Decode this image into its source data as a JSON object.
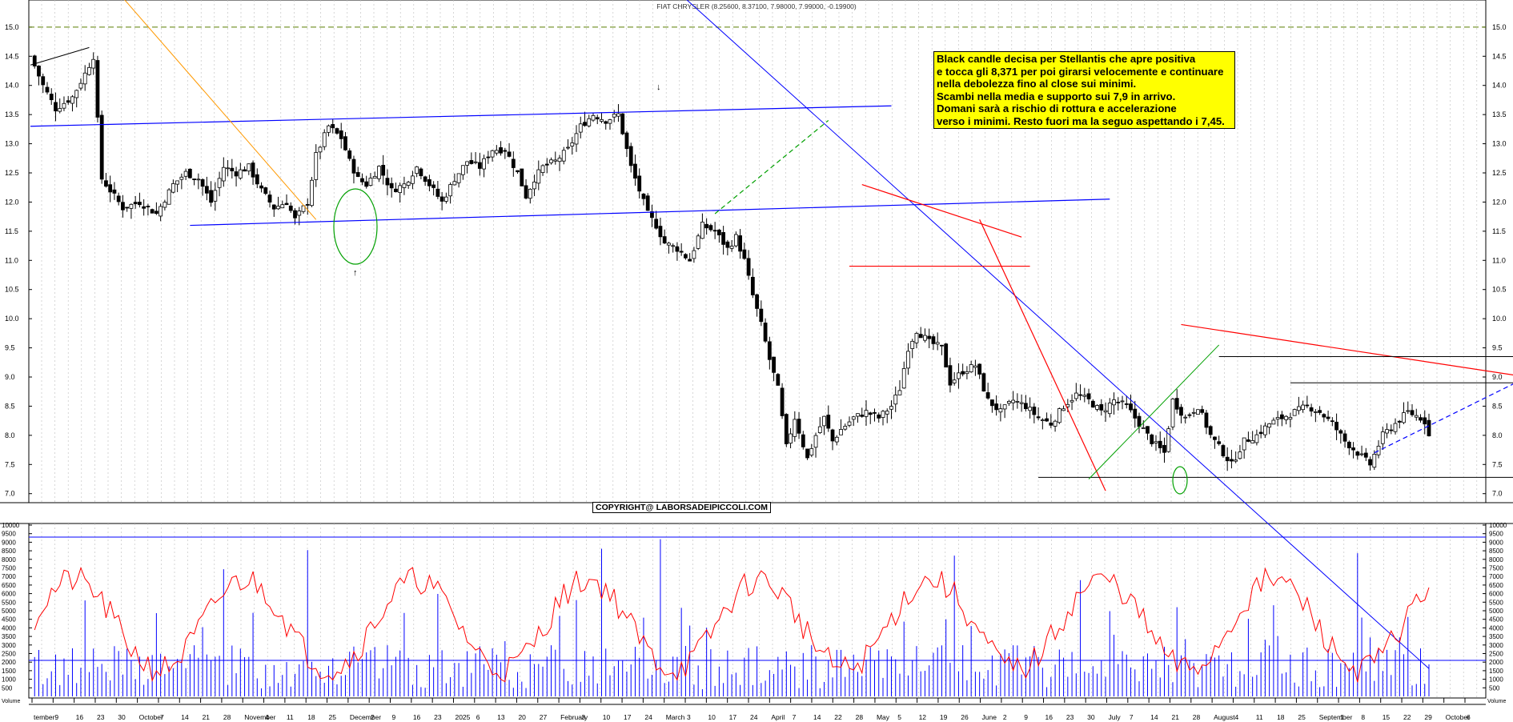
{
  "title": "FIAT CHRYSLER (8.25600, 8.37100, 7.98000, 7.99000, -0.19900)",
  "annotation": "Black candle decisa per Stellantis  che apre positiva\ne tocca gli 8,371 per poi girarsi velocemente e continuare\nnella debolezza fino al close sui minimi.\nScambi nella media e supporto sui 7,9 in arrivo.\nDomani sarà a rischio di rottura e accelerazione\nverso i minimi. Resto fuori ma la seguo aspettando i 7,45.",
  "copyright": "COPYRIGHT@ LABORSADEIPICCOLI.COM",
  "volume_axis_label": "Volume",
  "colors": {
    "price_line": "#000000",
    "trend_blue": "#0000ff",
    "trend_red": "#ff0000",
    "trend_green": "#00a000",
    "ma_orange": "#ff9900",
    "volume_bar": "#0000ff",
    "volume_ma": "#ff0000",
    "ref_dash": "#5a7d00"
  },
  "chart_data": [
    {
      "type": "candlestick",
      "title": "FIAT CHRYSLER (8.25600, 8.37100, 7.98000, 7.99000, -0.19900)",
      "ylim": [
        6.9,
        15.3
      ],
      "yticks": [
        "7.0",
        "7.5",
        "8.0",
        "8.5",
        "9.0",
        "9.5",
        "10.0",
        "10.5",
        "11.0",
        "11.5",
        "12.0",
        "12.5",
        "13.0",
        "13.5",
        "14.0",
        "14.5",
        "15.0"
      ],
      "reference_line": 15.0,
      "last_candle": {
        "open": 8.256,
        "high": 8.371,
        "low": 7.98,
        "close": 7.99,
        "change": -0.199
      },
      "path_points": [
        [
          0,
          14.5
        ],
        [
          3,
          14.0
        ],
        [
          6,
          13.6
        ],
        [
          10,
          13.8
        ],
        [
          13,
          14.2
        ],
        [
          15,
          14.5
        ],
        [
          16,
          13.4
        ],
        [
          17,
          12.4
        ],
        [
          20,
          12.1
        ],
        [
          22,
          11.9
        ],
        [
          26,
          12.0
        ],
        [
          30,
          11.8
        ],
        [
          34,
          12.3
        ],
        [
          37,
          12.5
        ],
        [
          40,
          12.4
        ],
        [
          43,
          12.0
        ],
        [
          46,
          12.6
        ],
        [
          49,
          12.5
        ],
        [
          52,
          12.6
        ],
        [
          55,
          12.2
        ],
        [
          58,
          11.9
        ],
        [
          61,
          12.0
        ],
        [
          63,
          11.7
        ],
        [
          66,
          12.0
        ],
        [
          68,
          12.8
        ],
        [
          71,
          13.3
        ],
        [
          74,
          13.1
        ],
        [
          76,
          12.7
        ],
        [
          78,
          12.4
        ],
        [
          80,
          12.3
        ],
        [
          83,
          12.6
        ],
        [
          86,
          12.2
        ],
        [
          89,
          12.3
        ],
        [
          92,
          12.6
        ],
        [
          95,
          12.3
        ],
        [
          98,
          12.0
        ],
        [
          101,
          12.4
        ],
        [
          104,
          12.7
        ],
        [
          107,
          12.6
        ],
        [
          110,
          12.9
        ],
        [
          113,
          12.9
        ],
        [
          116,
          12.5
        ],
        [
          118,
          12.1
        ],
        [
          120,
          12.4
        ],
        [
          122,
          12.6
        ],
        [
          125,
          12.7
        ],
        [
          128,
          12.9
        ],
        [
          131,
          13.3
        ],
        [
          134,
          13.5
        ],
        [
          137,
          13.4
        ],
        [
          140,
          13.5
        ],
        [
          143,
          12.6
        ],
        [
          145,
          12.2
        ],
        [
          147,
          11.8
        ],
        [
          149,
          11.6
        ],
        [
          151,
          11.3
        ],
        [
          154,
          11.2
        ],
        [
          157,
          11.0
        ],
        [
          160,
          11.6
        ],
        [
          163,
          11.5
        ],
        [
          166,
          11.2
        ],
        [
          168,
          11.4
        ],
        [
          170,
          11.0
        ],
        [
          172,
          10.4
        ],
        [
          174,
          9.9
        ],
        [
          176,
          9.3
        ],
        [
          178,
          8.8
        ],
        [
          180,
          7.8
        ],
        [
          182,
          8.3
        ],
        [
          185,
          7.6
        ],
        [
          187,
          8.0
        ],
        [
          189,
          8.3
        ],
        [
          191,
          7.9
        ],
        [
          193,
          8.1
        ],
        [
          196,
          8.3
        ],
        [
          199,
          8.4
        ],
        [
          202,
          8.3
        ],
        [
          205,
          8.5
        ],
        [
          207,
          8.8
        ],
        [
          209,
          9.5
        ],
        [
          211,
          9.8
        ],
        [
          214,
          9.6
        ],
        [
          217,
          9.5
        ],
        [
          219,
          8.9
        ],
        [
          222,
          9.1
        ],
        [
          225,
          9.2
        ],
        [
          228,
          8.6
        ],
        [
          231,
          8.4
        ],
        [
          234,
          8.6
        ],
        [
          237,
          8.5
        ],
        [
          240,
          8.3
        ],
        [
          243,
          8.2
        ],
        [
          246,
          8.5
        ],
        [
          249,
          8.7
        ],
        [
          252,
          8.6
        ],
        [
          255,
          8.4
        ],
        [
          258,
          8.6
        ],
        [
          261,
          8.5
        ],
        [
          264,
          8.2
        ],
        [
          267,
          7.9
        ],
        [
          270,
          7.7
        ],
        [
          272,
          8.6
        ],
        [
          275,
          8.3
        ],
        [
          278,
          8.5
        ],
        [
          281,
          8.0
        ],
        [
          284,
          7.7
        ],
        [
          286,
          7.5
        ],
        [
          289,
          7.9
        ],
        [
          292,
          8.0
        ],
        [
          295,
          8.2
        ],
        [
          298,
          8.3
        ],
        [
          301,
          8.4
        ],
        [
          304,
          8.5
        ],
        [
          307,
          8.4
        ],
        [
          310,
          8.2
        ],
        [
          313,
          7.9
        ],
        [
          316,
          7.7
        ],
        [
          319,
          7.5
        ],
        [
          322,
          8.0
        ],
        [
          325,
          8.2
        ],
        [
          328,
          8.4
        ],
        [
          331,
          8.3
        ],
        [
          333,
          8.18
        ]
      ]
    },
    {
      "type": "bar",
      "title": "Volume",
      "ylim": [
        0,
        10000
      ],
      "yticks": [
        "500",
        "1000",
        "1500",
        "2000",
        "2500",
        "3000",
        "3500",
        "4000",
        "4500",
        "5000",
        "5500",
        "6000",
        "6500",
        "7000",
        "7500",
        "8000",
        "8500",
        "9000",
        "9500",
        "10000"
      ],
      "reference_lines": [
        9300,
        2100
      ],
      "x_categories": [
        "tember",
        "9",
        "16",
        "23",
        "30",
        "October",
        "7",
        "14",
        "21",
        "28",
        "November",
        "4",
        "11",
        "18",
        "25",
        "December",
        "2",
        "9",
        "16",
        "23",
        "2025",
        "6",
        "13",
        "20",
        "27",
        "February",
        "3",
        "10",
        "17",
        "24",
        "March",
        "3",
        "10",
        "17",
        "24",
        "April",
        "7",
        "14",
        "22",
        "28",
        "May",
        "5",
        "12",
        "19",
        "26",
        "June",
        "2",
        "9",
        "16",
        "23",
        "30",
        "July",
        "7",
        "14",
        "21",
        "28",
        "August",
        "4",
        "11",
        "18",
        "25",
        "September",
        "1",
        "8",
        "15",
        "22",
        "29",
        "October",
        "6"
      ]
    }
  ]
}
